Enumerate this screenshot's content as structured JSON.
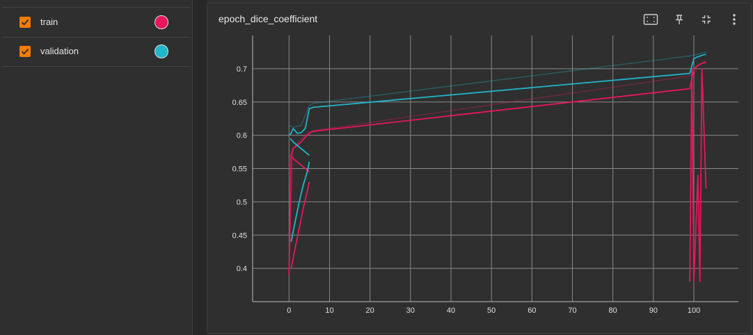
{
  "runs": [
    {
      "label": "train",
      "color": "#e8175d",
      "checked": true
    },
    {
      "label": "validation",
      "color": "#20b7cc",
      "checked": true
    }
  ],
  "card": {
    "title": "epoch_dice_coefficient",
    "toolbar": [
      "fit-domain-icon",
      "pin-icon",
      "collapse-icon",
      "more-vert-icon"
    ]
  },
  "colors": {
    "train": "#e8175d",
    "validation": "#20b7cc",
    "checkbox": "#f57c00",
    "grid": "#8a8a8a"
  },
  "chart_data": {
    "type": "line",
    "title": "epoch_dice_coefficient",
    "xlabel": "",
    "ylabel": "",
    "xlim": [
      -9,
      111
    ],
    "ylim": [
      0.35,
      0.75
    ],
    "xticks": [
      0,
      10,
      20,
      30,
      40,
      50,
      60,
      70,
      80,
      90,
      100
    ],
    "yticks": [
      0.4,
      0.45,
      0.5,
      0.55,
      0.6,
      0.65,
      0.7
    ],
    "grid": true,
    "series": [
      {
        "name": "train",
        "color": "#e8175d",
        "kind": "main",
        "x": [
          0,
          0.5,
          1,
          2,
          3,
          4,
          5,
          6,
          99,
          100,
          101,
          102,
          103
        ],
        "y": [
          0.39,
          0.57,
          0.58,
          0.585,
          0.59,
          0.597,
          0.603,
          0.606,
          0.67,
          0.7,
          0.705,
          0.708,
          0.71
        ]
      },
      {
        "name": "train",
        "color": "#e8175d",
        "kind": "main",
        "x": [
          0.5,
          1.5,
          2.5,
          3.5,
          4.5,
          5
        ],
        "y": [
          0.4,
          0.43,
          0.46,
          0.49,
          0.515,
          0.53
        ]
      },
      {
        "name": "train",
        "color": "#e8175d",
        "kind": "main",
        "x": [
          0.3,
          1,
          2,
          3,
          4,
          5
        ],
        "y": [
          0.57,
          0.565,
          0.56,
          0.555,
          0.55,
          0.545
        ]
      },
      {
        "name": "train",
        "color": "#e8175d",
        "kind": "main",
        "x": [
          99,
          99.5,
          100,
          101,
          101.5,
          102,
          103
        ],
        "y": [
          0.38,
          0.7,
          0.38,
          0.54,
          0.38,
          0.7,
          0.52
        ]
      },
      {
        "name": "train",
        "color": "#e8175d",
        "kind": "faint",
        "x": [
          0,
          1,
          3,
          5,
          6,
          100,
          101,
          103
        ],
        "y": [
          0.4,
          0.58,
          0.595,
          0.605,
          0.607,
          0.69,
          0.705,
          0.712
        ]
      },
      {
        "name": "validation",
        "color": "#20b7cc",
        "kind": "main",
        "x": [
          0,
          0.5,
          1,
          1.5,
          2,
          3,
          4,
          5,
          6,
          99,
          100,
          101,
          102,
          103
        ],
        "y": [
          0.6,
          0.603,
          0.61,
          0.607,
          0.603,
          0.604,
          0.61,
          0.64,
          0.642,
          0.693,
          0.715,
          0.718,
          0.72,
          0.722
        ]
      },
      {
        "name": "validation",
        "color": "#20b7cc",
        "kind": "main",
        "x": [
          0.5,
          1.5,
          2.5,
          3.5,
          4.5,
          5
        ],
        "y": [
          0.44,
          0.47,
          0.5,
          0.525,
          0.545,
          0.56
        ]
      },
      {
        "name": "validation",
        "color": "#20b7cc",
        "kind": "main",
        "x": [
          0.3,
          1,
          2,
          3,
          4,
          5
        ],
        "y": [
          0.595,
          0.59,
          0.585,
          0.58,
          0.575,
          0.57
        ]
      },
      {
        "name": "validation",
        "color": "#20b7cc",
        "kind": "faint",
        "x": [
          0,
          1,
          3,
          5,
          6,
          100,
          101,
          103
        ],
        "y": [
          0.615,
          0.612,
          0.615,
          0.645,
          0.648,
          0.72,
          0.722,
          0.725
        ]
      }
    ]
  }
}
